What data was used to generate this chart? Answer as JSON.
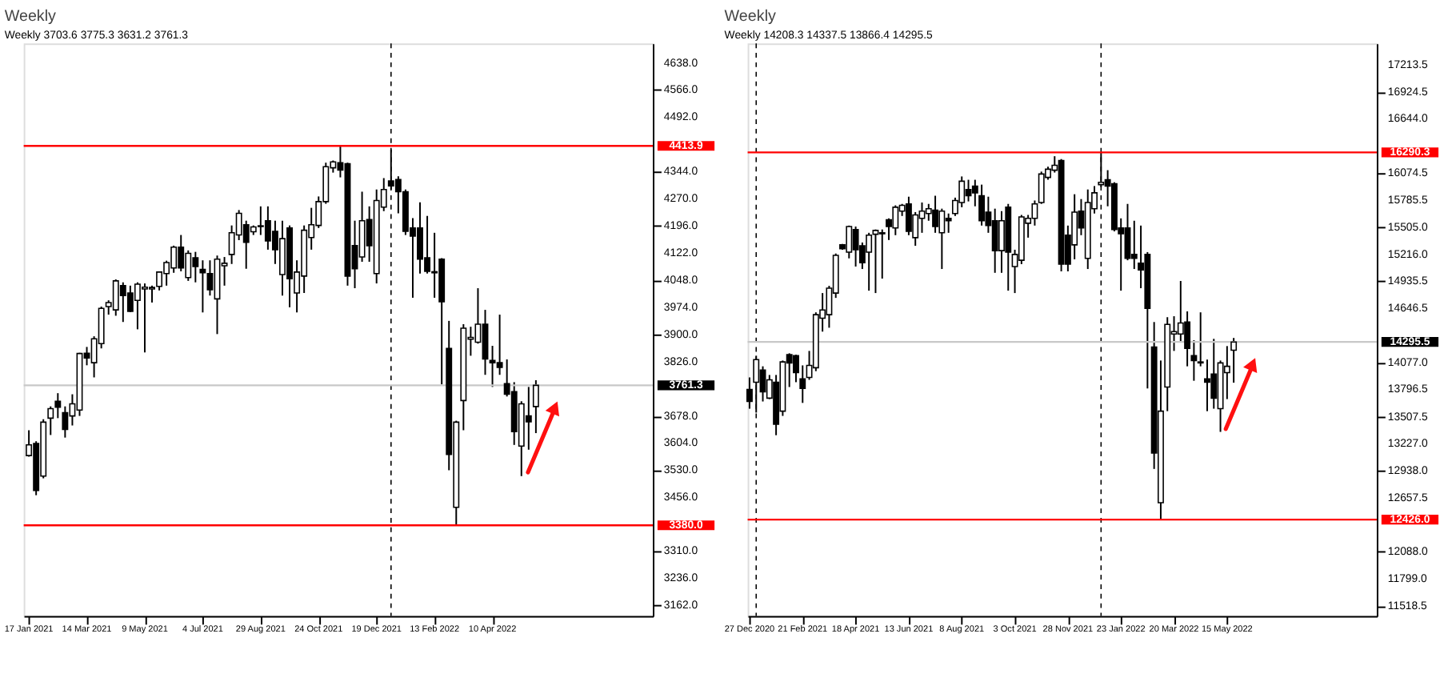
{
  "chart_data": [
    {
      "type": "candlestick",
      "title": "Weekly",
      "subtitle": "Weekly  3703.6 3775.3 3631.2 3761.3",
      "grid": false,
      "x": [
        "2021-01-17",
        "2021-01-24",
        "2021-01-31",
        "2021-02-07",
        "2021-02-14",
        "2021-02-21",
        "2021-02-28",
        "2021-03-07",
        "2021-03-14",
        "2021-03-21",
        "2021-03-28",
        "2021-04-04",
        "2021-04-11",
        "2021-04-18",
        "2021-04-25",
        "2021-05-02",
        "2021-05-09",
        "2021-05-16",
        "2021-05-23",
        "2021-05-30",
        "2021-06-06",
        "2021-06-13",
        "2021-06-20",
        "2021-06-27",
        "2021-07-04",
        "2021-07-11",
        "2021-07-18",
        "2021-07-25",
        "2021-08-01",
        "2021-08-08",
        "2021-08-15",
        "2021-08-22",
        "2021-08-29",
        "2021-09-05",
        "2021-09-12",
        "2021-09-19",
        "2021-09-26",
        "2021-10-03",
        "2021-10-10",
        "2021-10-17",
        "2021-10-24",
        "2021-10-31",
        "2021-11-07",
        "2021-11-14",
        "2021-11-21",
        "2021-11-28",
        "2021-12-05",
        "2021-12-12",
        "2021-12-19",
        "2021-12-26",
        "2022-01-02",
        "2022-01-09",
        "2022-01-16",
        "2022-01-23",
        "2022-01-30",
        "2022-02-06",
        "2022-02-13",
        "2022-02-20",
        "2022-02-27",
        "2022-03-06",
        "2022-03-13",
        "2022-03-20",
        "2022-03-27",
        "2022-04-03",
        "2022-04-10",
        "2022-04-17",
        "2022-04-24",
        "2022-05-01",
        "2022-05-08",
        "2022-05-15",
        "2022-05-22"
      ],
      "ohlc": [
        [
          3570,
          3639,
          3567,
          3599
        ],
        [
          3603,
          3609,
          3462,
          3475
        ],
        [
          3514,
          3669,
          3508,
          3661
        ],
        [
          3672,
          3704,
          3626,
          3698
        ],
        [
          3718,
          3740,
          3672,
          3702
        ],
        [
          3687,
          3704,
          3619,
          3641
        ],
        [
          3678,
          3737,
          3652,
          3711
        ],
        [
          3694,
          3850,
          3678,
          3848
        ],
        [
          3849,
          3866,
          3816,
          3836
        ],
        [
          3823,
          3895,
          3783,
          3888
        ],
        [
          3875,
          3976,
          3862,
          3971
        ],
        [
          3976,
          3993,
          3954,
          3987
        ],
        [
          3967,
          4050,
          3951,
          4046
        ],
        [
          4033,
          4042,
          3934,
          4006
        ],
        [
          4013,
          4033,
          3961,
          3963
        ],
        [
          3993,
          4042,
          3914,
          4037
        ],
        [
          4024,
          4039,
          3851,
          4029
        ],
        [
          4024,
          4033,
          3987,
          4028
        ],
        [
          4031,
          4072,
          4020,
          4070
        ],
        [
          4066,
          4101,
          4033,
          4096
        ],
        [
          4081,
          4142,
          4068,
          4138
        ],
        [
          4138,
          4171,
          4072,
          4081
        ],
        [
          4055,
          4129,
          4046,
          4121
        ],
        [
          4109,
          4125,
          4042,
          4085
        ],
        [
          4077,
          4102,
          3960,
          4068
        ],
        [
          4066,
          4102,
          4006,
          4022
        ],
        [
          3997,
          4115,
          3901,
          4105
        ],
        [
          4087,
          4111,
          4033,
          4094
        ],
        [
          4118,
          4197,
          4092,
          4177
        ],
        [
          4171,
          4239,
          4157,
          4230
        ],
        [
          4199,
          4210,
          4079,
          4151
        ],
        [
          4180,
          4197,
          4171,
          4193
        ],
        [
          4194,
          4249,
          4171,
          4196
        ],
        [
          4210,
          4249,
          4131,
          4155
        ],
        [
          4181,
          4210,
          4092,
          4131
        ],
        [
          4063,
          4210,
          4006,
          4161
        ],
        [
          4190,
          4197,
          3974,
          4052
        ],
        [
          4013,
          4102,
          3960,
          4070
        ],
        [
          4059,
          4197,
          4013,
          4184
        ],
        [
          4164,
          4245,
          4131,
          4199
        ],
        [
          4197,
          4276,
          4190,
          4262
        ],
        [
          4262,
          4368,
          4256,
          4357
        ],
        [
          4354,
          4374,
          4341,
          4370
        ],
        [
          4368,
          4414,
          4328,
          4348
        ],
        [
          4365,
          4368,
          4033,
          4059
        ],
        [
          4142,
          4210,
          4026,
          4079
        ],
        [
          4111,
          4289,
          4098,
          4210
        ],
        [
          4213,
          4249,
          4098,
          4142
        ],
        [
          4066,
          4295,
          4039,
          4265
        ],
        [
          4247,
          4326,
          4236,
          4295
        ],
        [
          4318,
          4404,
          4295,
          4305
        ],
        [
          4322,
          4331,
          4230,
          4289
        ],
        [
          4289,
          4295,
          4171,
          4181
        ],
        [
          4190,
          4217,
          4000,
          4168
        ],
        [
          4190,
          4260,
          4066,
          4105
        ],
        [
          4109,
          4223,
          4066,
          4072
        ],
        [
          4071,
          4177,
          4000,
          4068
        ],
        [
          4105,
          4108,
          3764,
          3989
        ],
        [
          3862,
          3937,
          3530,
          3573
        ],
        [
          3429,
          3665,
          3380,
          3661
        ],
        [
          3720,
          3928,
          3639,
          3917
        ],
        [
          3887,
          3921,
          3842,
          3892
        ],
        [
          3879,
          4026,
          3875,
          3928
        ],
        [
          3928,
          3967,
          3790,
          3833
        ],
        [
          3829,
          3869,
          3757,
          3823
        ],
        [
          3823,
          3954,
          3790,
          3810
        ],
        [
          3766,
          3832,
          3731,
          3737
        ],
        [
          3744,
          3770,
          3599,
          3635
        ],
        [
          3596,
          3718,
          3514,
          3711
        ],
        [
          3678,
          3757,
          3586,
          3662
        ],
        [
          3703.6,
          3775.3,
          3631.2,
          3761.3
        ]
      ],
      "xlim": [
        "2021-01-12",
        "2022-09-12"
      ],
      "xticks": [
        {
          "value": "2021-01-17",
          "label": "17 Jan 2021"
        },
        {
          "value": "2021-03-14",
          "label": "14 Mar 2021"
        },
        {
          "value": "2021-05-09",
          "label": "9 May 2021"
        },
        {
          "value": "2021-07-04",
          "label": "4 Jul 2021"
        },
        {
          "value": "2021-08-29",
          "label": "29 Aug 2021"
        },
        {
          "value": "2021-10-24",
          "label": "24 Oct 2021"
        },
        {
          "value": "2021-12-19",
          "label": "19 Dec 2021"
        },
        {
          "value": "2022-02-13",
          "label": "13 Feb 2022"
        },
        {
          "value": "2022-04-10",
          "label": "10 Apr 2022"
        }
      ],
      "ylim": [
        3133,
        4693
      ],
      "yticks": [
        {
          "value": 4638,
          "label": "4638.0"
        },
        {
          "value": 4566,
          "label": "4566.0"
        },
        {
          "value": 4492,
          "label": "4492.0"
        },
        {
          "value": 4344,
          "label": "4344.0"
        },
        {
          "value": 4270,
          "label": "4270.0"
        },
        {
          "value": 4196,
          "label": "4196.0"
        },
        {
          "value": 4122,
          "label": "4122.0"
        },
        {
          "value": 4048,
          "label": "4048.0"
        },
        {
          "value": 3974,
          "label": "3974.0"
        },
        {
          "value": 3900,
          "label": "3900.0"
        },
        {
          "value": 3826,
          "label": "3826.0"
        },
        {
          "value": 3678,
          "label": "3678.0"
        },
        {
          "value": 3604,
          "label": "3604.0"
        },
        {
          "value": 3530,
          "label": "3530.0"
        },
        {
          "value": 3456,
          "label": "3456.0"
        },
        {
          "value": 3310,
          "label": "3310.0"
        },
        {
          "value": 3236,
          "label": "3236.0"
        },
        {
          "value": 3162,
          "label": "3162.0"
        }
      ],
      "ref_lines": [
        {
          "axis": "y",
          "value": 4413.9,
          "label": "4413.9",
          "color": "#ff0000"
        },
        {
          "axis": "y",
          "value": 3380.0,
          "label": "3380.0",
          "color": "#ff0000"
        },
        {
          "axis": "y",
          "value": 3761.3,
          "label": "3761.3",
          "color": "#c8c8c8"
        },
        {
          "axis": "x",
          "value": "2022-01-02",
          "color": "#000000",
          "line_style": "dashed"
        }
      ]
    },
    {
      "type": "candlestick",
      "title": "Weekly",
      "subtitle": "Weekly  14208.3 14337.5 13866.4 14295.5",
      "grid": false,
      "x": [
        "2020-12-27",
        "2021-01-03",
        "2021-01-10",
        "2021-01-17",
        "2021-01-24",
        "2021-01-31",
        "2021-02-07",
        "2021-02-14",
        "2021-02-21",
        "2021-02-28",
        "2021-03-07",
        "2021-03-14",
        "2021-03-21",
        "2021-03-28",
        "2021-04-04",
        "2021-04-11",
        "2021-04-18",
        "2021-04-25",
        "2021-05-02",
        "2021-05-09",
        "2021-05-16",
        "2021-05-23",
        "2021-05-30",
        "2021-06-06",
        "2021-06-13",
        "2021-06-20",
        "2021-06-27",
        "2021-07-04",
        "2021-07-11",
        "2021-07-18",
        "2021-07-25",
        "2021-08-01",
        "2021-08-08",
        "2021-08-15",
        "2021-08-22",
        "2021-08-29",
        "2021-09-05",
        "2021-09-12",
        "2021-09-19",
        "2021-09-26",
        "2021-10-03",
        "2021-10-10",
        "2021-10-17",
        "2021-10-24",
        "2021-10-31",
        "2021-11-07",
        "2021-11-14",
        "2021-11-21",
        "2021-11-28",
        "2021-12-05",
        "2021-12-12",
        "2021-12-19",
        "2021-12-26",
        "2022-01-02",
        "2022-01-09",
        "2022-01-16",
        "2022-01-23",
        "2022-01-30",
        "2022-02-06",
        "2022-02-13",
        "2022-02-20",
        "2022-02-27",
        "2022-03-06",
        "2022-03-13",
        "2022-03-20",
        "2022-03-27",
        "2022-04-03",
        "2022-04-10",
        "2022-04-17",
        "2022-04-24",
        "2022-05-01",
        "2022-05-08",
        "2022-05-15",
        "2022-05-22"
      ],
      "ohlc": [
        [
          13795,
          13922,
          13593,
          13669
        ],
        [
          13872,
          14151,
          13552,
          14110
        ],
        [
          13999,
          14039,
          13669,
          13770
        ],
        [
          13704,
          13948,
          13694,
          13897
        ],
        [
          13872,
          13948,
          13314,
          13430
        ],
        [
          13567,
          14100,
          13517,
          14085
        ],
        [
          14161,
          14176,
          13821,
          14075
        ],
        [
          14151,
          14161,
          13872,
          13973
        ],
        [
          13907,
          14049,
          13654,
          13806
        ],
        [
          13922,
          14201,
          13897,
          14049
        ],
        [
          14024,
          14607,
          13988,
          14582
        ],
        [
          14546,
          14810,
          14404,
          14632
        ],
        [
          14582,
          14886,
          14445,
          14861
        ],
        [
          14810,
          15226,
          14759,
          15206
        ],
        [
          15317,
          15327,
          15266,
          15277
        ],
        [
          15241,
          15520,
          15175,
          15510
        ],
        [
          15479,
          15510,
          15089,
          15266
        ],
        [
          15307,
          15342,
          15063,
          15130
        ],
        [
          15241,
          15444,
          14835,
          15419
        ],
        [
          15429,
          15479,
          14810,
          15469
        ],
        [
          15434,
          15479,
          14962,
          15444
        ],
        [
          15581,
          15596,
          15368,
          15510
        ],
        [
          15495,
          15733,
          15419,
          15713
        ],
        [
          15672,
          15748,
          15621,
          15733
        ],
        [
          15748,
          15824,
          15419,
          15459
        ],
        [
          15393,
          15662,
          15307,
          15632
        ],
        [
          15596,
          15763,
          15444,
          15672
        ],
        [
          15647,
          15748,
          15571,
          15698
        ],
        [
          15682,
          15834,
          15444,
          15510
        ],
        [
          15444,
          15698,
          15063,
          15672
        ],
        [
          15596,
          15647,
          15444,
          15571
        ],
        [
          15647,
          15814,
          15621,
          15784
        ],
        [
          15763,
          16037,
          15713,
          15987
        ],
        [
          15900,
          16002,
          15774,
          15834
        ],
        [
          15936,
          16002,
          15723,
          15865
        ],
        [
          15834,
          15951,
          15520,
          15571
        ],
        [
          15662,
          15824,
          15444,
          15520
        ],
        [
          15571,
          15698,
          15023,
          15256
        ],
        [
          15256,
          15672,
          15023,
          15571
        ],
        [
          15713,
          15748,
          14835,
          15241
        ],
        [
          15089,
          15266,
          14810,
          15216
        ],
        [
          15155,
          15632,
          15114,
          15611
        ],
        [
          15545,
          15632,
          15393,
          15596
        ],
        [
          15596,
          15784,
          15520,
          15748
        ],
        [
          15763,
          16088,
          15748,
          16063
        ],
        [
          16027,
          16139,
          16002,
          16113
        ],
        [
          16103,
          16250,
          16078,
          16154
        ],
        [
          16205,
          16220,
          15038,
          15114
        ],
        [
          15419,
          15520,
          15038,
          15114
        ],
        [
          15317,
          15850,
          15165,
          15662
        ],
        [
          15672,
          15799,
          15419,
          15495
        ],
        [
          15175,
          15900,
          15063,
          15763
        ],
        [
          15698,
          15936,
          15647,
          15865
        ],
        [
          15951,
          16290,
          15926,
          15976
        ],
        [
          16002,
          16103,
          15723,
          15936
        ],
        [
          15961,
          15976,
          15459,
          15479
        ],
        [
          15495,
          15596,
          14835,
          15434
        ],
        [
          15495,
          15748,
          15155,
          15175
        ],
        [
          15216,
          15571,
          15063,
          15175
        ],
        [
          15124,
          15520,
          14861,
          15053
        ],
        [
          15216,
          15241,
          13806,
          14648
        ],
        [
          14242,
          14505,
          12959,
          13126
        ],
        [
          12604,
          14100,
          12426,
          13567
        ],
        [
          13821,
          14556,
          13567,
          14480
        ],
        [
          14379,
          14566,
          14201,
          14404
        ],
        [
          14379,
          14937,
          14303,
          14495
        ],
        [
          14506,
          14617,
          14039,
          14227
        ],
        [
          14151,
          14313,
          13887,
          14100
        ],
        [
          14085,
          14607,
          14039,
          14075
        ],
        [
          13907,
          14110,
          13567,
          13872
        ],
        [
          13958,
          14328,
          13593,
          13704
        ],
        [
          13593,
          14100,
          13349,
          14075
        ],
        [
          13973,
          14252,
          13694,
          14039
        ],
        [
          14208.3,
          14337.5,
          13866.4,
          14295.5
        ]
      ],
      "xlim": [
        "2020-12-25",
        "2022-10-20"
      ],
      "xticks": [
        {
          "value": "2020-12-27",
          "label": "27 Dec 2020"
        },
        {
          "value": "2021-02-21",
          "label": "21 Feb 2021"
        },
        {
          "value": "2021-04-18",
          "label": "18 Apr 2021"
        },
        {
          "value": "2021-06-13",
          "label": "13 Jun 2021"
        },
        {
          "value": "2021-08-08",
          "label": "8 Aug 2021"
        },
        {
          "value": "2021-10-03",
          "label": "3 Oct 2021"
        },
        {
          "value": "2021-11-28",
          "label": "28 Nov 2021"
        },
        {
          "value": "2022-01-23",
          "label": "23 Jan 2022"
        },
        {
          "value": "2022-03-20",
          "label": "20 Mar 2022"
        },
        {
          "value": "2022-05-15",
          "label": "15 May 2022"
        }
      ],
      "ylim": [
        11412,
        17437
      ],
      "yticks": [
        {
          "value": 17213.5,
          "label": "17213.5"
        },
        {
          "value": 16924.5,
          "label": "16924.5"
        },
        {
          "value": 16644,
          "label": "16644.0"
        },
        {
          "value": 16074.5,
          "label": "16074.5"
        },
        {
          "value": 15785.5,
          "label": "15785.5"
        },
        {
          "value": 15505,
          "label": "15505.0"
        },
        {
          "value": 15216,
          "label": "15216.0"
        },
        {
          "value": 14935.5,
          "label": "14935.5"
        },
        {
          "value": 14646.5,
          "label": "14646.5"
        },
        {
          "value": 14077,
          "label": "14077.0"
        },
        {
          "value": 13796.5,
          "label": "13796.5"
        },
        {
          "value": 13507.5,
          "label": "13507.5"
        },
        {
          "value": 13227,
          "label": "13227.0"
        },
        {
          "value": 12938,
          "label": "12938.0"
        },
        {
          "value": 12657.5,
          "label": "12657.5"
        },
        {
          "value": 12088,
          "label": "12088.0"
        },
        {
          "value": 11799,
          "label": "11799.0"
        },
        {
          "value": 11518.5,
          "label": "11518.5"
        }
      ],
      "ref_lines": [
        {
          "axis": "y",
          "value": 16290.3,
          "label": "16290.3",
          "color": "#ff0000"
        },
        {
          "axis": "y",
          "value": 12426.0,
          "label": "12426.0",
          "color": "#ff0000"
        },
        {
          "axis": "y",
          "value": 14295.5,
          "label": "14295.5",
          "color": "#c8c8c8"
        },
        {
          "axis": "x",
          "value": "2021-01-03",
          "color": "#000000",
          "line_style": "dashed"
        },
        {
          "axis": "x",
          "value": "2022-01-02",
          "color": "#000000",
          "line_style": "dashed"
        }
      ]
    }
  ]
}
